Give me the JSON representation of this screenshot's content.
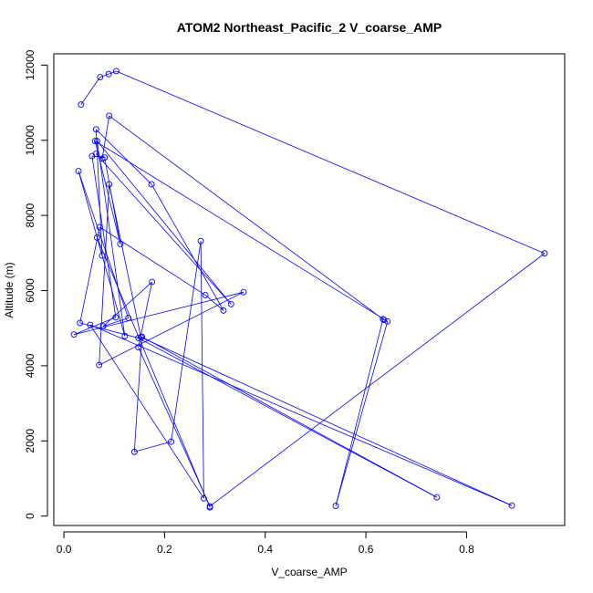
{
  "chart_data": {
    "type": "line",
    "title": "ATOM2 Northeast_Pacific_2 V_coarse_AMP",
    "xlabel": "V_coarse_AMP",
    "ylabel": "Altitude (m)",
    "xlim": [
      -0.02,
      0.995
    ],
    "ylim": [
      -250,
      12300
    ],
    "xticks": [
      0.0,
      0.2,
      0.4,
      0.6,
      0.8
    ],
    "xtick_labels": [
      "0.0",
      "0.2",
      "0.4",
      "0.6",
      "0.8"
    ],
    "yticks": [
      0,
      2000,
      4000,
      6000,
      8000,
      10000,
      12000
    ],
    "ytick_labels": [
      "0",
      "2000",
      "4000",
      "6000",
      "8000",
      "10000",
      "12000"
    ],
    "grid": false,
    "markers": "open-circle",
    "series": [
      {
        "color": "#0000ff",
        "x": [
          0.034,
          0.072,
          0.089,
          0.104,
          0.955,
          0.29,
          0.148,
          0.175,
          0.078,
          0.128,
          0.029,
          0.121,
          0.066,
          0.332,
          0.064,
          0.076,
          0.09,
          0.636,
          0.634,
          0.54,
          0.643,
          0.062,
          0.112,
          0.081,
          0.056,
          0.103,
          0.02,
          0.357,
          0.07,
          0.09,
          0.153,
          0.89,
          0.052,
          0.278,
          0.272,
          0.213,
          0.14,
          0.155,
          0.741,
          0.148,
          0.032,
          0.071,
          0.281,
          0.317,
          0.174,
          0.064,
          0.076,
          0.066,
          0.29
        ],
        "y": [
          10950,
          11680,
          11760,
          11840,
          6990,
          260,
          4490,
          6230,
          5050,
          5270,
          9180,
          4790,
          9980,
          5640,
          9640,
          9510,
          10650,
          5220,
          5240,
          270,
          5180,
          9980,
          7240,
          9540,
          9580,
          5290,
          4830,
          5960,
          4020,
          8830,
          4760,
          280,
          5090,
          470,
          7320,
          1980,
          1710,
          4770,
          500,
          4740,
          5140,
          7690,
          5880,
          5470,
          8830,
          10290,
          6930,
          7410,
          230
        ]
      }
    ]
  }
}
